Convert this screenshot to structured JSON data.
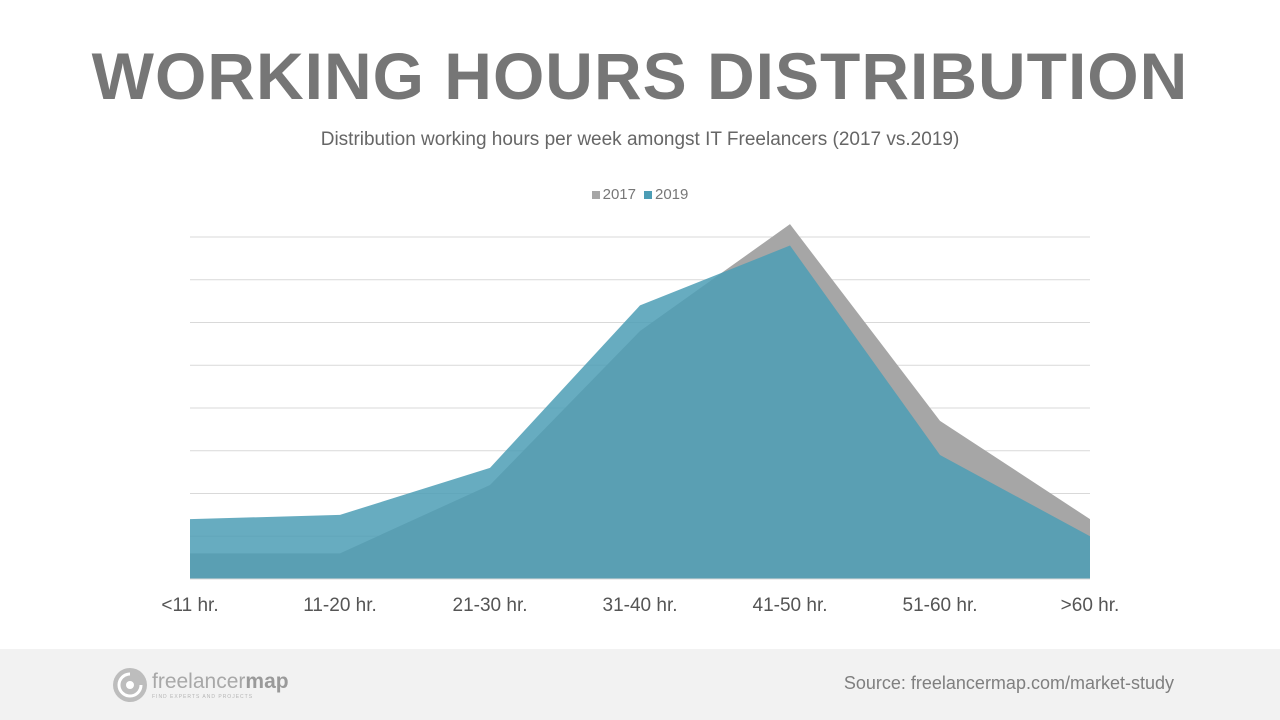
{
  "header": {
    "title": "WORKING HOURS DISTRIBUTION",
    "subtitle": "Distribution working hours per week amongst IT Freelancers (2017 vs.2019)"
  },
  "footer": {
    "logo_text_light": "freelancer",
    "logo_text_bold": "map",
    "logo_tagline": "FIND EXPERTS AND PROJECTS",
    "source": "Source: freelancermap.com/market-study"
  },
  "colors": {
    "series_2017": "#a6a6a6",
    "series_2019": "#4c9db5",
    "overlap": "#45889b",
    "grid": "#d9d9d9"
  },
  "chart_data": {
    "type": "area",
    "title": "WORKING HOURS DISTRIBUTION",
    "subtitle": "Distribution working hours per week amongst IT Freelancers (2017 vs.2019)",
    "categories": [
      "<11 hr.",
      "11-20 hr.",
      "21-30 hr.",
      "31-40 hr.",
      "41-50 hr.",
      "51-60 hr.",
      ">60 hr."
    ],
    "series": [
      {
        "name": "2017",
        "values": [
          3,
          3,
          11,
          29,
          41.5,
          18.5,
          7
        ]
      },
      {
        "name": "2019",
        "values": [
          7,
          7.5,
          13,
          32,
          39,
          14.5,
          5
        ]
      }
    ],
    "ylim": [
      0,
      40
    ],
    "ytick_step": 5,
    "grid": true,
    "y_tick_labels_shown": false,
    "legend_position": "top-center",
    "xlabel": "",
    "ylabel": ""
  }
}
